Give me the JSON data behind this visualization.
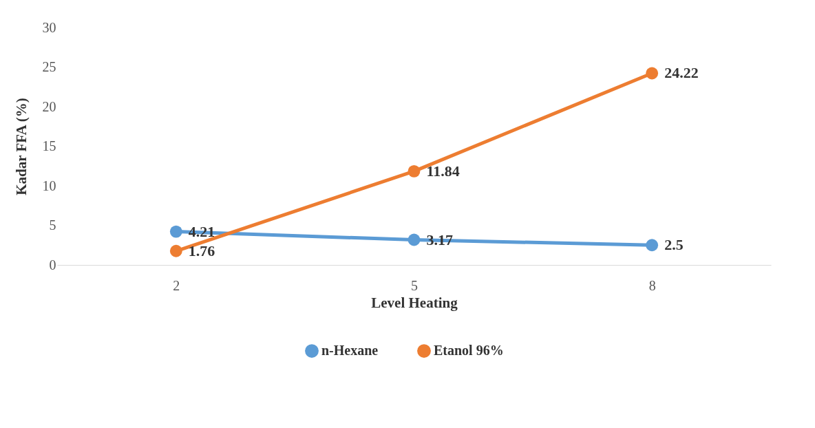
{
  "chart_data": {
    "type": "line",
    "xlabel": "Level Heating",
    "ylabel": "Kadar FFA (%)",
    "categories": [
      "2",
      "5",
      "8"
    ],
    "series": [
      {
        "name": "n-Hexane",
        "color": "#5b9bd5",
        "values": [
          4.21,
          3.17,
          2.5
        ]
      },
      {
        "name": "Etanol 96%",
        "color": "#ed7d31",
        "values": [
          1.76,
          11.84,
          24.22
        ]
      }
    ],
    "ylim": [
      0,
      30
    ],
    "yticks": [
      0,
      5,
      10,
      15,
      20,
      25,
      30
    ],
    "data_labels": true,
    "marker": "circle",
    "line_style": "solid",
    "legend": "bottom",
    "grid": false
  }
}
